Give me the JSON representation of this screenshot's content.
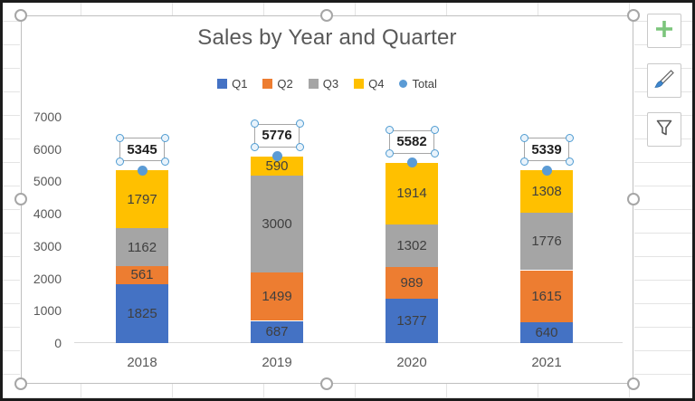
{
  "chart_data": {
    "type": "bar",
    "stacked": true,
    "title": "Sales by Year and Quarter",
    "categories": [
      "2018",
      "2019",
      "2020",
      "2021"
    ],
    "series": [
      {
        "name": "Q1",
        "color": "#4472C4",
        "marker": "square",
        "values": [
          1825,
          687,
          1377,
          640
        ]
      },
      {
        "name": "Q2",
        "color": "#ED7D31",
        "marker": "square",
        "values": [
          561,
          1499,
          989,
          1615
        ]
      },
      {
        "name": "Q3",
        "color": "#A5A5A5",
        "marker": "square",
        "values": [
          1162,
          3000,
          1302,
          1776
        ]
      },
      {
        "name": "Q4",
        "color": "#FFC000",
        "marker": "square",
        "values": [
          1797,
          590,
          1914,
          1308
        ]
      },
      {
        "name": "Total",
        "color": "#5B9BD5",
        "marker": "circle",
        "type": "scatter",
        "values": [
          5345,
          5776,
          5582,
          5339
        ]
      }
    ],
    "data_labels_shown": true,
    "total_labels": [
      "5345",
      "5776",
      "5582",
      "5339"
    ],
    "ylim": [
      0,
      7000
    ],
    "ytick_step": 1000,
    "yticks": [
      0,
      1000,
      2000,
      3000,
      4000,
      5000,
      6000,
      7000
    ],
    "xlabel": "",
    "ylabel": "",
    "grid": false,
    "legend_position": "top"
  },
  "side_panel": {
    "buttons": [
      {
        "icon": "plus-icon"
      },
      {
        "icon": "brush-icon"
      },
      {
        "icon": "funnel-icon"
      }
    ]
  },
  "colors": {
    "title_text": "#595959",
    "axis_text": "#595959",
    "data_label_text": "#3F3F3F",
    "total_label_text": "#1F1F1F",
    "plus_icon_green": "#7CC57C",
    "brush_icon_blue": "#3E86CF",
    "selection_handle_gray": "#A6A6A6",
    "selection_handle_blue": "#4E9BD1",
    "axis_line": "#D9D9D9"
  }
}
